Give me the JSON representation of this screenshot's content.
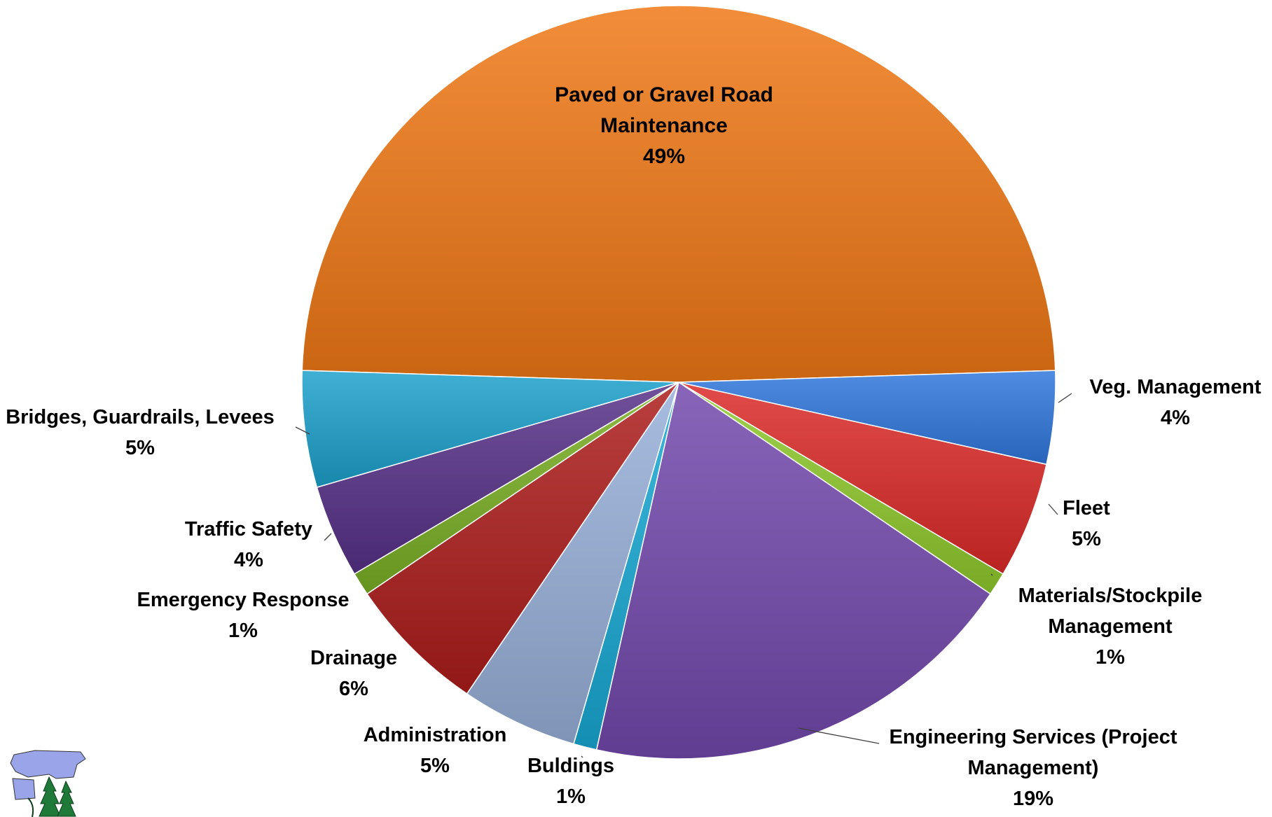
{
  "chart_data": {
    "type": "pie",
    "title": "",
    "start_angle_deg": 90,
    "direction": "clockwise",
    "legend": "none",
    "slices": [
      {
        "label": "Paved or Gravel Road Maintenance",
        "lines": [
          "Paved or Gravel Road",
          "Maintenance"
        ],
        "value": 49,
        "pct_label": "49%",
        "color": "#E07B28"
      },
      {
        "label": "Veg. Management",
        "lines": [
          "Veg. Management"
        ],
        "value": 4,
        "pct_label": "4%",
        "color": "#3E7BD0"
      },
      {
        "label": "Fleet",
        "lines": [
          "Fleet"
        ],
        "value": 5,
        "pct_label": "5%",
        "color": "#CF3A38"
      },
      {
        "label": "Materials/Stockpile Management",
        "lines": [
          "Materials/Stockpile",
          "Management"
        ],
        "value": 1,
        "pct_label": "1%",
        "color": "#8EC03C"
      },
      {
        "label": "Engineering Services (Project Management)",
        "lines": [
          "Engineering Services (Project",
          "Management)"
        ],
        "value": 19,
        "pct_label": "19%",
        "color": "#7753A8"
      },
      {
        "label": "Buldings",
        "lines": [
          "Buldings"
        ],
        "value": 1,
        "pct_label": "1%",
        "color": "#2BA4C9"
      },
      {
        "label": "Administration",
        "lines": [
          "Administration"
        ],
        "value": 5,
        "pct_label": "5%",
        "color": "#96AACD"
      },
      {
        "label": "Drainage",
        "lines": [
          "Drainage"
        ],
        "value": 6,
        "pct_label": "6%",
        "color": "#A72E2C"
      },
      {
        "label": "Emergency Response",
        "lines": [
          "Emergency Response"
        ],
        "value": 1,
        "pct_label": "1%",
        "color": "#7DAA35"
      },
      {
        "label": "Traffic Safety",
        "lines": [
          "Traffic Safety"
        ],
        "value": 4,
        "pct_label": "4%",
        "color": "#5E3F88"
      },
      {
        "label": "Bridges, Guardrails,  Levees",
        "lines": [
          "Bridges, Guardrails,  Levees"
        ],
        "value": 5,
        "pct_label": "5%",
        "color": "#2D9DC2"
      }
    ]
  },
  "logo": {
    "icon": "county-map-with-trees-logo"
  }
}
